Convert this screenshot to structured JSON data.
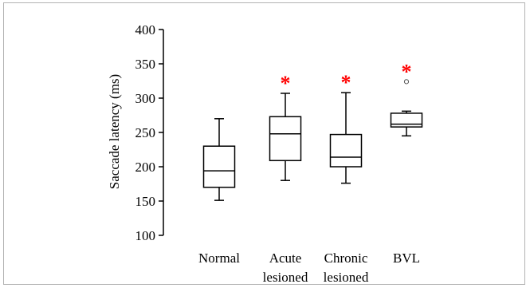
{
  "chart_data": {
    "type": "box",
    "ylabel": "Saccade latency (ms)",
    "xlabel": "",
    "ylim": [
      100,
      400
    ],
    "yticks": [
      100,
      150,
      200,
      250,
      300,
      350,
      400
    ],
    "categories": [
      {
        "lines": [
          "Normal"
        ]
      },
      {
        "lines": [
          "Acute",
          "lesioned"
        ]
      },
      {
        "lines": [
          "Chronic",
          "lesioned"
        ]
      },
      {
        "lines": [
          "BVL"
        ]
      }
    ],
    "boxes": [
      {
        "whisker_low": 151,
        "q1": 170,
        "median": 194,
        "q3": 230,
        "whisker_high": 270,
        "outliers": [],
        "significant": false
      },
      {
        "whisker_low": 180,
        "q1": 209,
        "median": 248,
        "q3": 273,
        "whisker_high": 307,
        "outliers": [],
        "significant": true
      },
      {
        "whisker_low": 176,
        "q1": 200,
        "median": 214,
        "q3": 247,
        "whisker_high": 308,
        "outliers": [],
        "significant": true
      },
      {
        "whisker_low": 245,
        "q1": 258,
        "median": 262,
        "q3": 278,
        "whisker_high": 281,
        "outliers": [
          324
        ],
        "significant": true
      }
    ],
    "significance_marker": "*",
    "significance_color": "#ff0000",
    "grid": false
  }
}
